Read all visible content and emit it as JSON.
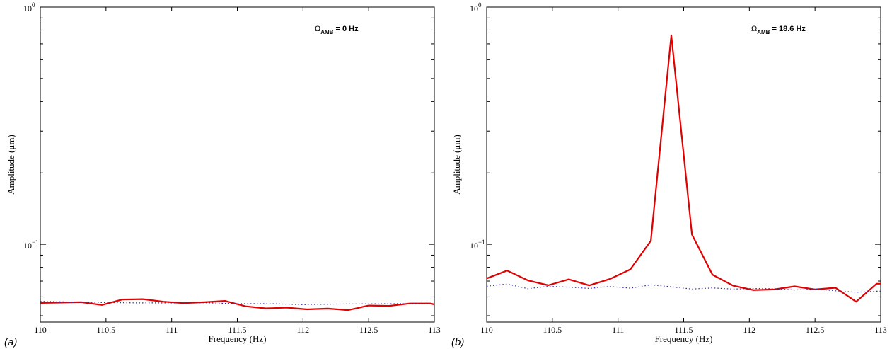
{
  "chart_data": [
    {
      "type": "line",
      "panel_label": "(a)",
      "annotation": {
        "symbol": "Ω",
        "subscript": "AMB",
        "suffix": " = 0 Hz"
      },
      "xlabel": "Frequency (Hz)",
      "ylabel": "Amplitude (μm)",
      "xlim": [
        110,
        113
      ],
      "ylim": [
        0.047,
        1.0
      ],
      "yscale": "log",
      "x_ticks": [
        "110",
        "110.5",
        "111",
        "111.5",
        "112",
        "112.5",
        "113"
      ],
      "y_ticks": [
        {
          "value": 1,
          "base": "10",
          "exp": "0"
        },
        {
          "value": 0.1,
          "base": "10",
          "exp": "−1"
        }
      ],
      "grid": false,
      "series": [
        {
          "style": "solid",
          "color": "#e00000",
          "x": [
            110,
            110.156,
            110.313,
            110.469,
            110.625,
            110.781,
            110.938,
            111.094,
            111.25,
            111.406,
            111.563,
            111.719,
            111.875,
            112.031,
            112.188,
            112.344,
            112.5,
            112.656,
            112.813,
            112.969,
            113
          ],
          "y": [
            0.0566,
            0.0568,
            0.057,
            0.0555,
            0.0585,
            0.0587,
            0.0573,
            0.0565,
            0.057,
            0.0577,
            0.0548,
            0.0537,
            0.0541,
            0.0532,
            0.0536,
            0.0528,
            0.0552,
            0.055,
            0.0563,
            0.0563,
            0.0558
          ]
        },
        {
          "style": "dotted",
          "color": "#2a2aa8",
          "x": [
            110,
            110.25,
            110.5,
            110.75,
            111,
            111.25,
            111.5,
            111.75,
            112,
            112.25,
            112.5,
            112.75,
            113
          ],
          "y": [
            0.0575,
            0.0571,
            0.0568,
            0.0566,
            0.0566,
            0.0567,
            0.0562,
            0.0562,
            0.0557,
            0.056,
            0.0561,
            0.0562,
            0.056
          ]
        }
      ]
    },
    {
      "type": "line",
      "panel_label": "(b)",
      "annotation": {
        "symbol": "Ω",
        "subscript": "AMB",
        "suffix": " = 18.6 Hz"
      },
      "xlabel": "Frequency (Hz)",
      "ylabel": "Amplitude (μm)",
      "xlim": [
        110,
        113
      ],
      "ylim": [
        0.047,
        1.0
      ],
      "yscale": "log",
      "x_ticks": [
        "110",
        "110.5",
        "111",
        "111.5",
        "112",
        "112.5",
        "113"
      ],
      "y_ticks": [
        {
          "value": 1,
          "base": "10",
          "exp": "0"
        },
        {
          "value": 0.1,
          "base": "10",
          "exp": "−1"
        }
      ],
      "grid": false,
      "series": [
        {
          "style": "solid",
          "color": "#e00000",
          "x": [
            110,
            110.156,
            110.313,
            110.469,
            110.625,
            110.781,
            110.938,
            111.094,
            111.25,
            111.406,
            111.563,
            111.719,
            111.875,
            112.031,
            112.188,
            112.344,
            112.5,
            112.656,
            112.813,
            112.969,
            113
          ],
          "y": [
            0.0718,
            0.0775,
            0.0705,
            0.0672,
            0.0712,
            0.0671,
            0.0714,
            0.0784,
            0.1035,
            0.76,
            0.11,
            0.0745,
            0.067,
            0.0641,
            0.0645,
            0.0665,
            0.0645,
            0.0656,
            0.0573,
            0.0682,
            0.0682
          ]
        },
        {
          "style": "dotted",
          "color": "#2a2aa8",
          "x": [
            110,
            110.156,
            110.313,
            110.469,
            110.625,
            110.781,
            110.938,
            111.094,
            111.25,
            111.406,
            111.563,
            111.719,
            111.875,
            112.031,
            112.188,
            112.344,
            112.5,
            112.656,
            112.813,
            112.969,
            113
          ],
          "y": [
            0.0666,
            0.068,
            0.065,
            0.0665,
            0.066,
            0.0652,
            0.0664,
            0.0653,
            0.0675,
            0.0662,
            0.0648,
            0.0655,
            0.0648,
            0.0651,
            0.065,
            0.0642,
            0.0647,
            0.0637,
            0.0628,
            0.0634,
            0.0634
          ]
        }
      ]
    }
  ]
}
